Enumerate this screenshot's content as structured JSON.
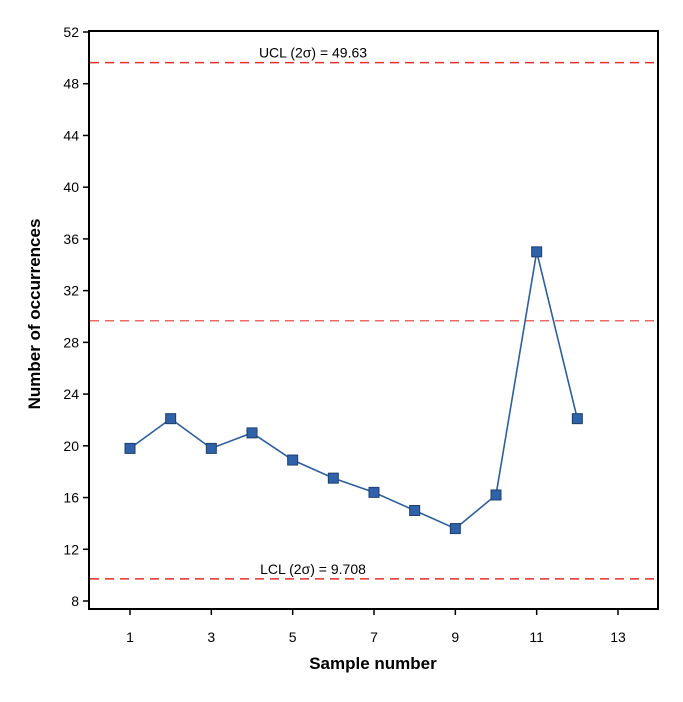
{
  "chart_data": {
    "type": "line",
    "title": "",
    "xlabel": "Sample number",
    "ylabel": "Number of occurrences",
    "xlim": [
      0,
      14
    ],
    "ylim": [
      6.5,
      52
    ],
    "x_ticks": [
      1,
      3,
      5,
      7,
      9,
      11,
      13
    ],
    "y_ticks": [
      8,
      12,
      16,
      20,
      24,
      28,
      32,
      36,
      40,
      44,
      48,
      52
    ],
    "grid": false,
    "legend": "none",
    "series": [
      {
        "x": [
          1,
          2,
          3,
          4,
          5,
          6,
          7,
          8,
          9,
          10,
          11,
          12
        ],
        "values": [
          19.8,
          22.1,
          19.8,
          21.0,
          18.9,
          17.5,
          16.4,
          15.0,
          13.6,
          16.2,
          35.0,
          22.1
        ],
        "color": "#2e5f9a",
        "marker": "square",
        "marker_color": "#2f62a8"
      }
    ],
    "reference_lines": [
      {
        "y": 49.63,
        "label": "UCL (2σ) = 49.63",
        "color": "#e0312b",
        "style": "dashed"
      },
      {
        "y": 29.67,
        "label": "",
        "color": "#ee6a65",
        "style": "dashed"
      },
      {
        "y": 9.708,
        "label": "LCL (2σ) = 9.708",
        "color": "#e0312b",
        "style": "dashed"
      }
    ]
  }
}
